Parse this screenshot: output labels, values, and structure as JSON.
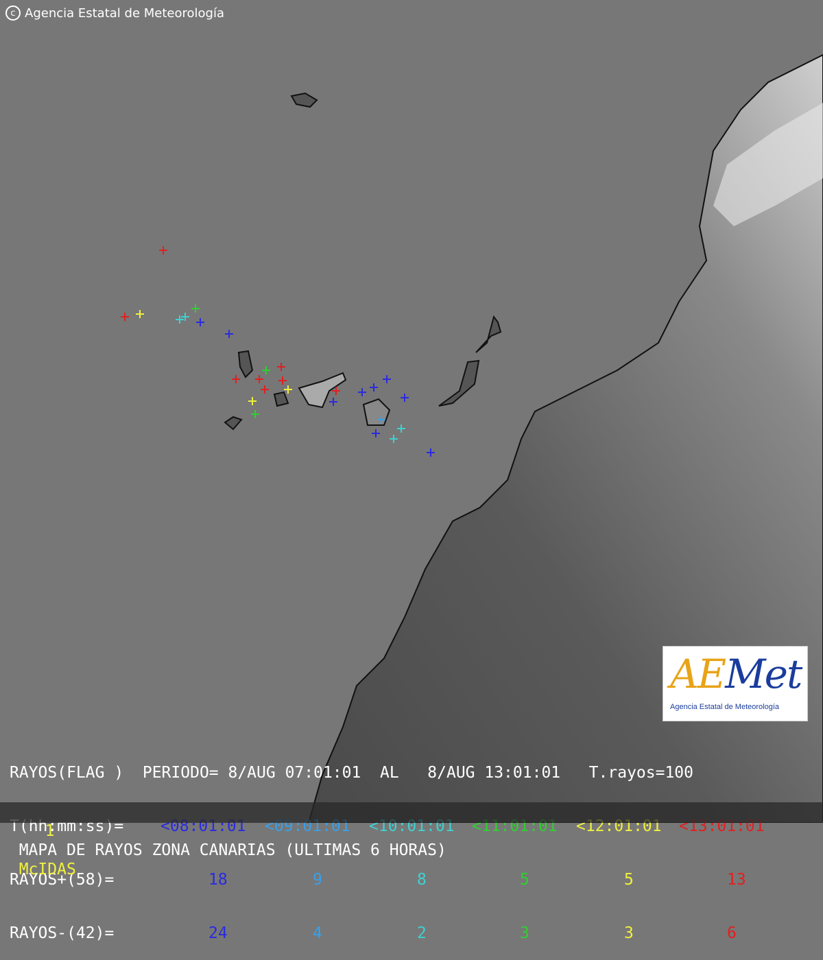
{
  "credit": {
    "text": "Agencia Estatal de Meteorología",
    "icon": "copyright-icon"
  },
  "logo": {
    "text_a": "AE",
    "text_b": "Met",
    "subtitle": "Agencia Estatal de Meteorología"
  },
  "legend": {
    "line1": "RAYOS(FLAG )  PERIODO= 8/AUG 07:01:01  AL   8/AUG 13:01:01   T.rayos=100",
    "time_label": "T(hh:mm:ss)=",
    "positive_label": "RAYOS+(58)=",
    "negative_label": "RAYOS-(42)=",
    "intervals": [
      {
        "time": "<08:01:01",
        "positive": "18",
        "negative": "24",
        "color": "#2a2ae0"
      },
      {
        "time": "<09:01:01",
        "positive": "9",
        "negative": "4",
        "color": "#3aa0e8"
      },
      {
        "time": "<10:01:01",
        "positive": "8",
        "negative": "2",
        "color": "#40d0d0"
      },
      {
        "time": "<11:01:01",
        "positive": "5",
        "negative": "3",
        "color": "#30d030"
      },
      {
        "time": "<12:01:01",
        "positive": "5",
        "negative": "3",
        "color": "#f0f040"
      },
      {
        "time": "<13:01:01",
        "positive": "13",
        "negative": "6",
        "color": "#e02020"
      }
    ]
  },
  "footer": {
    "frame": "1",
    "title": "MAPA DE RAYOS ZONA CANARIAS (ULTIMAS 6 HORAS)",
    "software": "McIDAS"
  },
  "colors": {
    "sea": "#777777",
    "frame": "#f0f040"
  }
}
